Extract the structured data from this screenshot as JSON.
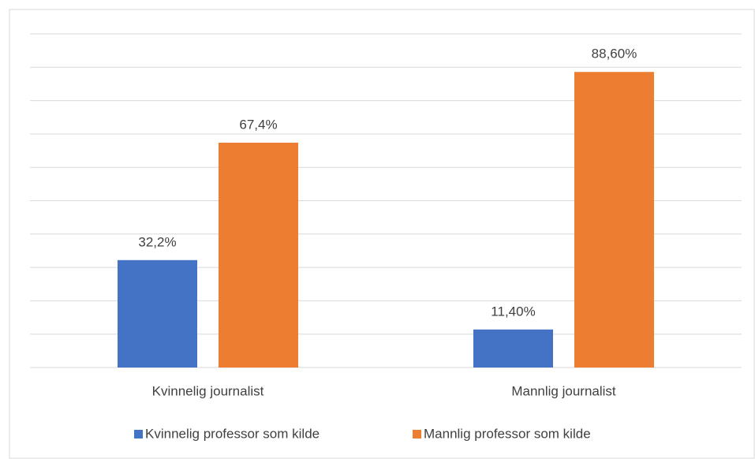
{
  "chart_data": {
    "type": "bar",
    "categories": [
      "Kvinnelig journalist",
      "Mannlig journalist"
    ],
    "series": [
      {
        "name": "Kvinnelig professor som kilde",
        "color": "#4472c4",
        "values": [
          32.2,
          11.4
        ],
        "value_labels": [
          "32,2%",
          "11,40%"
        ]
      },
      {
        "name": "Mannlig professor som kilde",
        "color": "#ed7d31",
        "values": [
          67.4,
          88.6
        ],
        "value_labels": [
          "67,4%",
          "88,60%"
        ]
      }
    ],
    "ylim": [
      0,
      100
    ],
    "yticks": [
      0,
      10,
      20,
      30,
      40,
      50,
      60,
      70,
      80,
      90,
      100
    ],
    "grid": true,
    "legend": "bottom"
  }
}
